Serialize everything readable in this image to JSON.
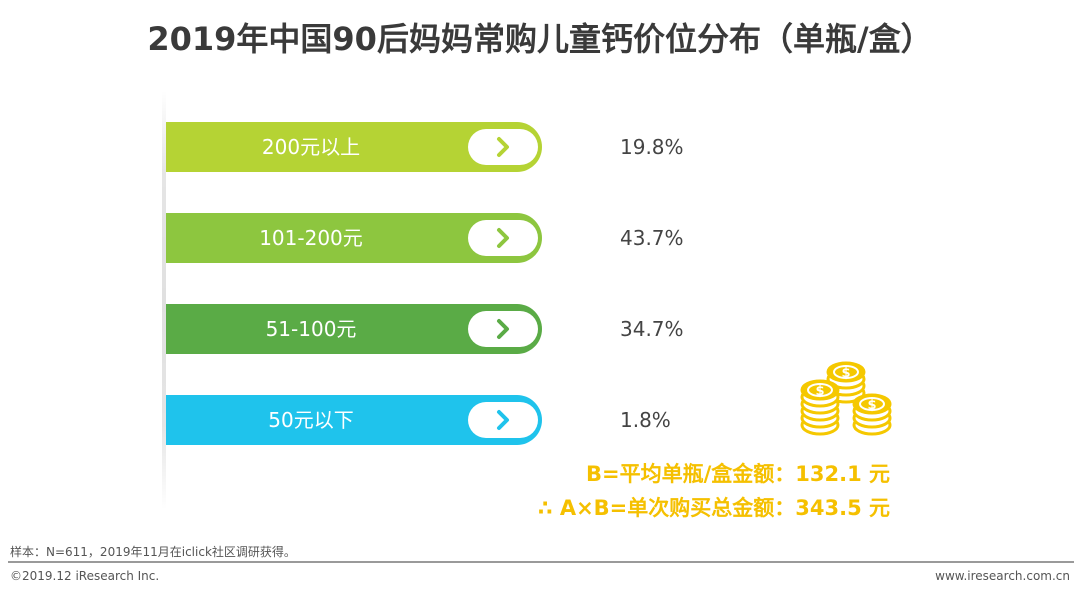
{
  "colors": {
    "bar_1": "#b5d334",
    "bar_2": "#8dc63f",
    "bar_3": "#5aab46",
    "bar_4": "#1fc3ec",
    "note": "#f5c000",
    "coin": "#f5c800"
  },
  "chart_data": {
    "type": "bar",
    "title": "2019年中国90后妈妈常购儿童钙价位分布（单瓶/盒）",
    "categories": [
      "200元以上",
      "101-200元",
      "51-100元",
      "50元以下"
    ],
    "values": [
      19.8,
      43.7,
      34.7,
      1.8
    ],
    "value_labels": [
      "19.8%",
      "43.7%",
      "34.7%",
      "1.8%"
    ],
    "unit": "%",
    "legend": "none",
    "grid": false
  },
  "icons": {
    "bar_button": "chevron-right-icon",
    "decoration": "coins-stack-icon"
  },
  "notes": {
    "average_price": "B=平均单瓶/盒金额：132.1 元",
    "average_spend": "∴ A×B=单次购买总金额：343.5 元"
  },
  "footer": {
    "sample": "样本：N=611，2019年11月在iclick社区调研获得。",
    "copyright": "©2019.12 iResearch Inc.",
    "website": "www.iresearch.com.cn"
  }
}
